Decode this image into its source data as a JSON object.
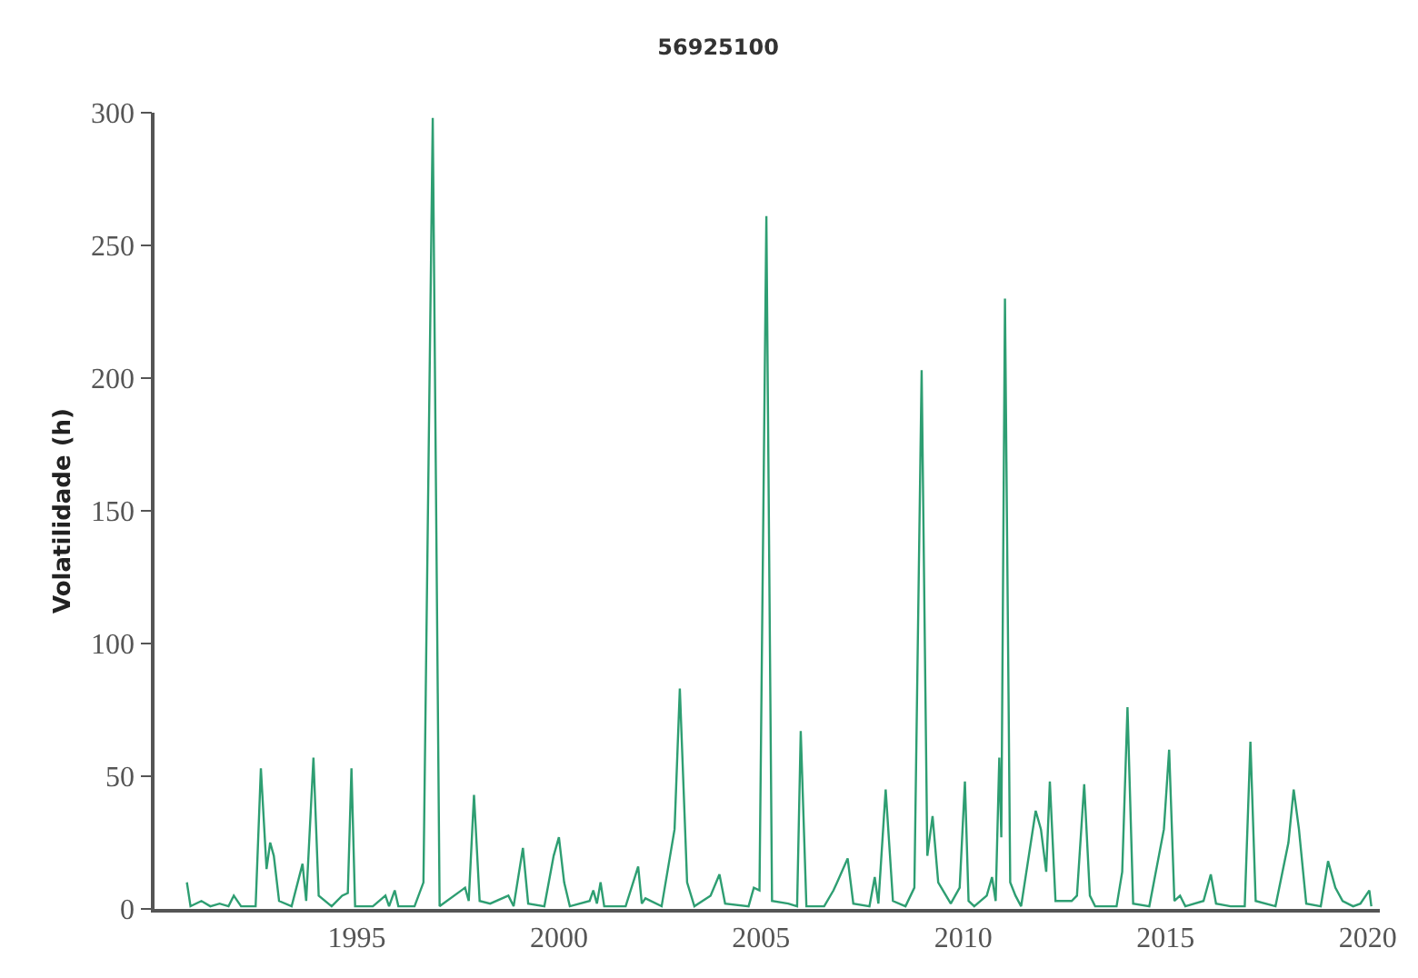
{
  "chart_data": {
    "type": "line",
    "title": "56925100",
    "ylabel": "Volatilidade (h)",
    "x": [
      1990.8,
      1990.89,
      1991.16,
      1991.38,
      1991.61,
      1991.83,
      1991.96,
      1992.14,
      1992.5,
      1992.63,
      1992.77,
      1992.86,
      1992.95,
      1993.08,
      1993.39,
      1993.66,
      1993.75,
      1993.93,
      1994.06,
      1994.38,
      1994.64,
      1994.78,
      1994.87,
      1994.96,
      1995.4,
      1995.71,
      1995.8,
      1995.94,
      1996.03,
      1996.43,
      1996.65,
      1996.88,
      1997.05,
      1997.68,
      1997.77,
      1997.9,
      1998.04,
      1998.3,
      1998.75,
      1998.88,
      1999.11,
      1999.24,
      1999.64,
      1999.87,
      2000.0,
      2000.13,
      2000.27,
      2000.76,
      2000.85,
      2000.94,
      2001.03,
      2001.12,
      2001.65,
      2001.96,
      2002.05,
      2002.14,
      2002.54,
      2002.86,
      2002.99,
      2003.17,
      2003.35,
      2003.75,
      2003.97,
      2004.11,
      2004.69,
      2004.82,
      2004.96,
      2005.13,
      2005.27,
      2005.67,
      2005.89,
      2005.98,
      2006.12,
      2006.56,
      2006.79,
      2006.88,
      2007.14,
      2007.28,
      2007.68,
      2007.81,
      2007.9,
      2008.08,
      2008.26,
      2008.57,
      2008.79,
      2008.97,
      2009.11,
      2009.24,
      2009.38,
      2009.69,
      2009.91,
      2010.04,
      2010.13,
      2010.27,
      2010.58,
      2010.71,
      2010.8,
      2010.89,
      2010.94,
      2011.03,
      2011.16,
      2011.29,
      2011.43,
      2011.79,
      2011.92,
      2012.05,
      2012.14,
      2012.28,
      2012.68,
      2012.81,
      2012.99,
      2013.13,
      2013.26,
      2013.79,
      2013.93,
      2014.06,
      2014.2,
      2014.6,
      2014.96,
      2015.09,
      2015.22,
      2015.36,
      2015.49,
      2015.94,
      2016.12,
      2016.25,
      2016.61,
      2016.96,
      2017.1,
      2017.23,
      2017.72,
      2018.04,
      2018.17,
      2018.3,
      2018.48,
      2018.84,
      2019.02,
      2019.2,
      2019.38,
      2019.64,
      2019.82,
      2020.04,
      2020.09
    ],
    "series": [
      {
        "color": "#2e9e72",
        "values": [
          10,
          1,
          3,
          1,
          2,
          1,
          5,
          1,
          1,
          53,
          15,
          25,
          20,
          3,
          1,
          17,
          3,
          57,
          5,
          1,
          5,
          6,
          53,
          1,
          1,
          5,
          1,
          7,
          1,
          1,
          10,
          298,
          1,
          8,
          3,
          43,
          3,
          2,
          5,
          1,
          23,
          2,
          1,
          20,
          27,
          10,
          1,
          3,
          7,
          2,
          10,
          1,
          1,
          16,
          2,
          4,
          1,
          30,
          83,
          10,
          1,
          5,
          13,
          2,
          1,
          8,
          7,
          261,
          3,
          2,
          1,
          67,
          1,
          1,
          7,
          10,
          19,
          2,
          1,
          12,
          2,
          45,
          3,
          1,
          8,
          203,
          20,
          35,
          10,
          2,
          8,
          48,
          3,
          1,
          5,
          12,
          3,
          57,
          27,
          230,
          10,
          5,
          1,
          37,
          30,
          14,
          48,
          3,
          3,
          5,
          47,
          5,
          1,
          1,
          14,
          76,
          2,
          1,
          30,
          60,
          3,
          5,
          1,
          3,
          13,
          2,
          1,
          1,
          63,
          3,
          1,
          25,
          45,
          30,
          2,
          1,
          18,
          8,
          3,
          1,
          2,
          7,
          1
        ]
      }
    ],
    "xlim": [
      1990,
      2020.3
    ],
    "xticks": [
      1995,
      2000,
      2005,
      2010,
      2015,
      2020
    ],
    "ylim": [
      0,
      300
    ],
    "yticks": [
      0,
      50,
      100,
      150,
      200,
      250,
      300
    ],
    "marker": "none",
    "line_style": "solid"
  }
}
